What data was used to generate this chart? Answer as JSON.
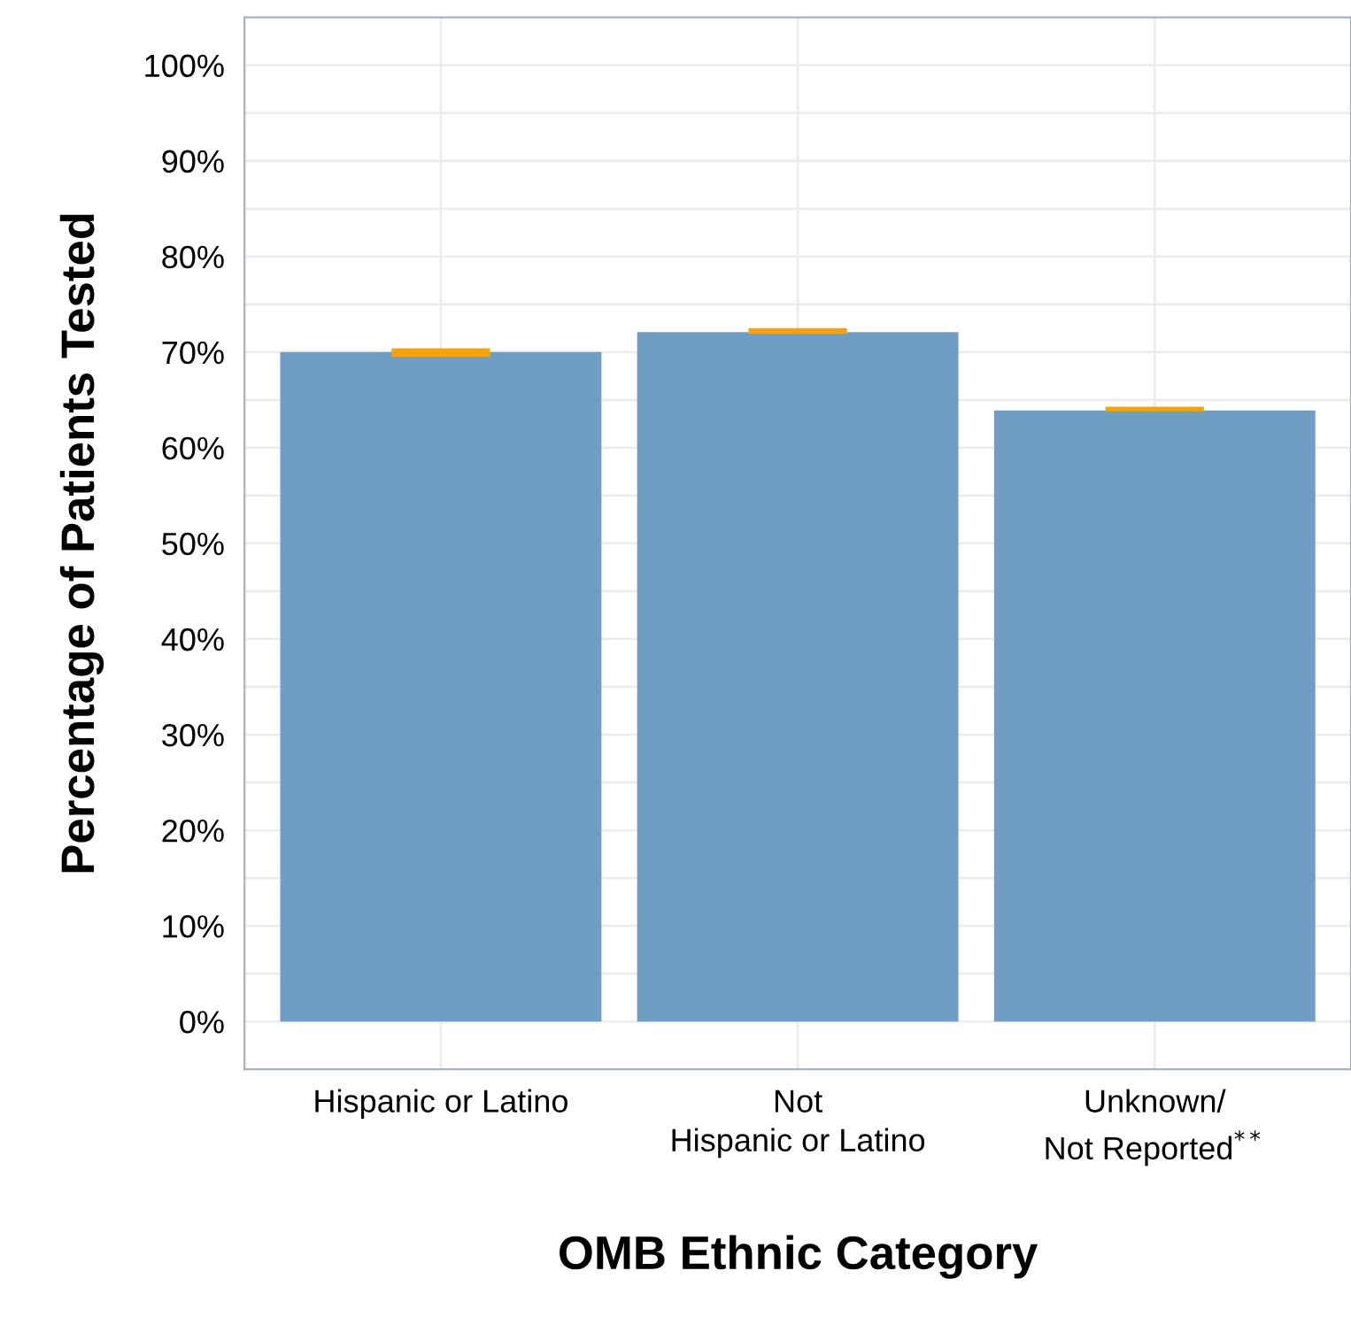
{
  "chart_data": {
    "type": "bar",
    "xlabel": "OMB Ethnic Category",
    "ylabel": "Percentage of Patients Tested",
    "categories": [
      "Hispanic or Latino",
      "Not\nHispanic or Latino",
      "Unknown/\nNot Reported$^{**}$"
    ],
    "values": [
      70,
      72.1,
      63.9
    ],
    "color": "#6f9dc4",
    "errors": [
      [
        69.5,
        70.4
      ],
      [
        71.9,
        72.5
      ],
      [
        63.8,
        64.3
      ]
    ],
    "ylim": [
      -5,
      105
    ],
    "yticks": [
      {
        "value": 0,
        "label": "0%"
      },
      {
        "value": 10,
        "label": "10%"
      },
      {
        "value": 20,
        "label": "20%"
      },
      {
        "value": 30,
        "label": "30%"
      },
      {
        "value": 40,
        "label": "40%"
      },
      {
        "value": 50,
        "label": "50%"
      },
      {
        "value": 60,
        "label": "60%"
      },
      {
        "value": 70,
        "label": "70%"
      },
      {
        "value": 80,
        "label": "80%"
      },
      {
        "value": 90,
        "label": "90%"
      },
      {
        "value": 100,
        "label": "100%"
      }
    ],
    "grid": true
  }
}
